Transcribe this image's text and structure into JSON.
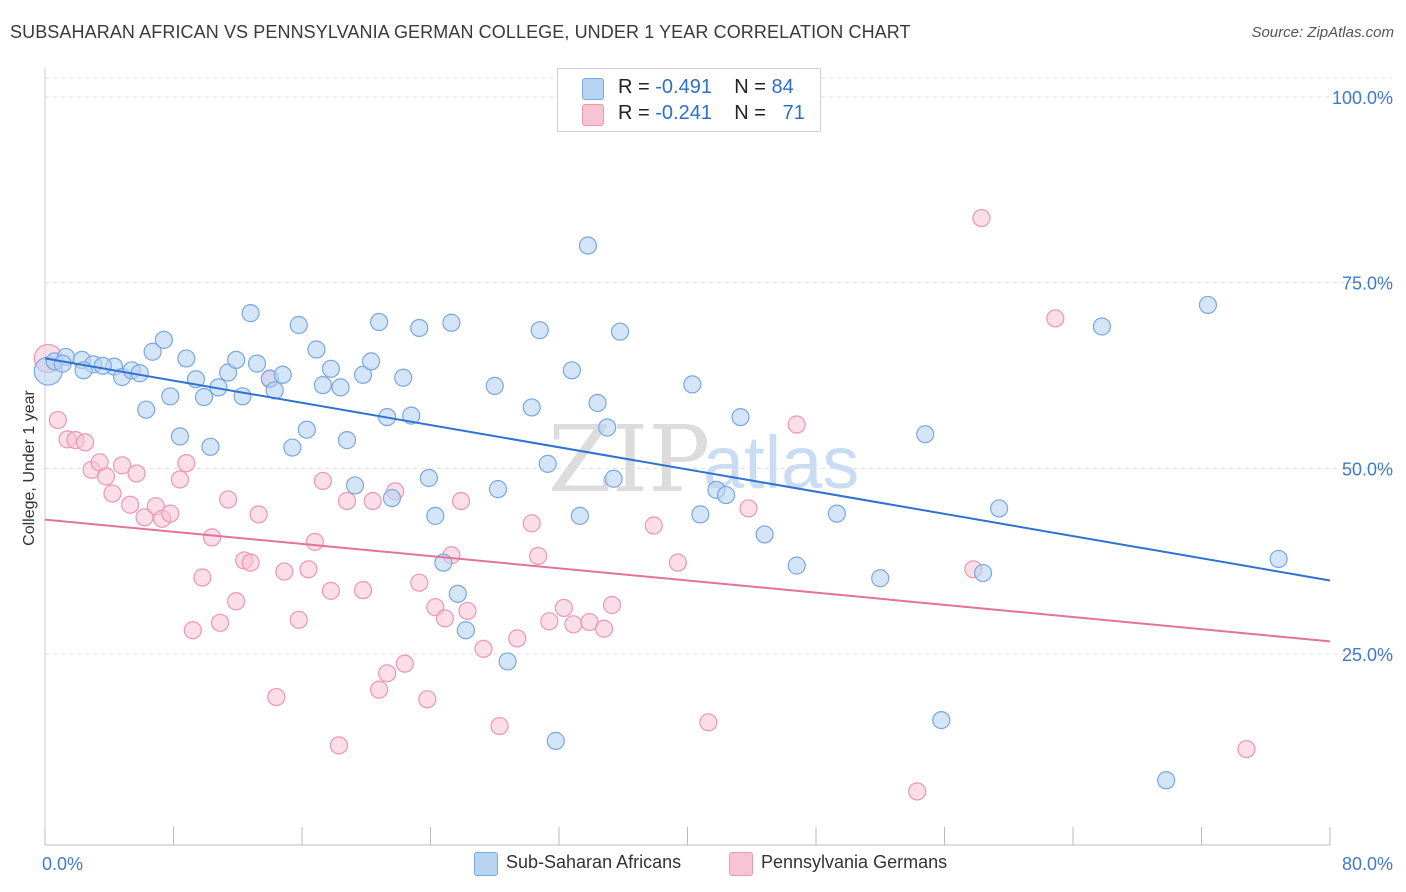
{
  "header": {
    "title": "SUBSAHARAN AFRICAN VS PENNSYLVANIA GERMAN COLLEGE, UNDER 1 YEAR CORRELATION CHART",
    "source": "Source: ZipAtlas.com"
  },
  "legend": {
    "row1": {
      "r_label": "R = ",
      "r_value": "-0.491",
      "n_label": "N = ",
      "n_value": "84"
    },
    "row2": {
      "r_label": "R = ",
      "r_value": "-0.241",
      "n_label": "N = ",
      "n_value": "71"
    }
  },
  "bottom_legend": {
    "series1": "Sub-Saharan Africans",
    "series2": "Pennsylvania Germans"
  },
  "watermark": {
    "zip": "ZIP",
    "atlas": "atlas"
  },
  "colors": {
    "blue_fill": "#b9d3f3",
    "blue_stroke": "#7aa7df",
    "blue_line": "#2f72d0",
    "pink_fill": "#f8c3d3",
    "pink_stroke": "#ee96b2",
    "pink_line": "#e4729a",
    "axis_text": "#3f7acb",
    "grid": "#dddddd"
  },
  "chart_data": {
    "type": "scatter",
    "title": "SUBSAHARAN AFRICAN VS PENNSYLVANIA GERMAN COLLEGE, UNDER 1 YEAR CORRELATION CHART",
    "xlabel": "",
    "ylabel": "College, Under 1 year",
    "xlim": [
      0,
      80
    ],
    "ylim": [
      0,
      105
    ],
    "x_tick_labels": [
      "0.0%",
      "80.0%"
    ],
    "y_ticks": [
      25,
      50,
      75,
      100
    ],
    "y_tick_labels": [
      "25.0%",
      "50.0%",
      "75.0%",
      "100.0%"
    ],
    "grid": true,
    "legend_position": "top-center",
    "series": [
      {
        "name": "Sub-Saharan Africans",
        "color": "#b9d3f3",
        "trend": {
          "x": [
            0,
            80
          ],
          "y": [
            64.8,
            34.9
          ]
        },
        "points": [
          [
            0.2,
            63.1
          ],
          [
            0.6,
            64.4
          ],
          [
            1.3,
            65.0
          ],
          [
            2.3,
            64.6
          ],
          [
            3.0,
            64.0
          ],
          [
            2.4,
            63.2
          ],
          [
            4.3,
            63.7
          ],
          [
            4.8,
            62.3
          ],
          [
            5.4,
            63.2
          ],
          [
            5.9,
            62.8
          ],
          [
            6.3,
            57.9
          ],
          [
            6.7,
            65.7
          ],
          [
            7.4,
            67.3
          ],
          [
            7.8,
            59.7
          ],
          [
            8.4,
            54.3
          ],
          [
            8.8,
            64.8
          ],
          [
            9.4,
            62.0
          ],
          [
            9.9,
            59.6
          ],
          [
            10.3,
            52.9
          ],
          [
            10.8,
            60.9
          ],
          [
            11.4,
            62.9
          ],
          [
            11.9,
            64.6
          ],
          [
            12.3,
            59.7
          ],
          [
            12.8,
            70.9
          ],
          [
            13.2,
            64.1
          ],
          [
            14.0,
            62.1
          ],
          [
            14.3,
            60.5
          ],
          [
            14.8,
            62.6
          ],
          [
            15.4,
            52.8
          ],
          [
            15.8,
            69.3
          ],
          [
            16.3,
            55.2
          ],
          [
            16.9,
            66.0
          ],
          [
            17.3,
            61.2
          ],
          [
            17.8,
            63.4
          ],
          [
            18.4,
            60.9
          ],
          [
            18.8,
            53.8
          ],
          [
            19.3,
            47.7
          ],
          [
            19.8,
            62.6
          ],
          [
            20.3,
            64.4
          ],
          [
            20.8,
            69.7
          ],
          [
            21.3,
            56.9
          ],
          [
            21.6,
            46.0
          ],
          [
            22.3,
            62.2
          ],
          [
            22.8,
            57.1
          ],
          [
            23.3,
            68.9
          ],
          [
            23.9,
            48.7
          ],
          [
            24.3,
            43.6
          ],
          [
            24.8,
            37.3
          ],
          [
            25.3,
            69.6
          ],
          [
            25.7,
            33.1
          ],
          [
            26.2,
            28.2
          ],
          [
            28.0,
            61.1
          ],
          [
            28.2,
            47.2
          ],
          [
            28.8,
            24.0
          ],
          [
            30.3,
            58.2
          ],
          [
            30.8,
            68.6
          ],
          [
            31.3,
            50.6
          ],
          [
            31.8,
            13.3
          ],
          [
            32.8,
            63.2
          ],
          [
            33.3,
            43.6
          ],
          [
            33.8,
            80.0
          ],
          [
            34.4,
            58.8
          ],
          [
            35.0,
            55.5
          ],
          [
            35.4,
            48.6
          ],
          [
            35.8,
            68.4
          ],
          [
            40.3,
            61.3
          ],
          [
            40.8,
            43.8
          ],
          [
            41.8,
            47.1
          ],
          [
            42.4,
            46.4
          ],
          [
            43.3,
            56.9
          ],
          [
            44.8,
            41.1
          ],
          [
            46.8,
            36.9
          ],
          [
            49.3,
            43.9
          ],
          [
            52.0,
            35.2
          ],
          [
            54.8,
            54.6
          ],
          [
            55.8,
            16.1
          ],
          [
            58.4,
            35.9
          ],
          [
            59.4,
            44.6
          ],
          [
            65.8,
            69.1
          ],
          [
            72.4,
            72.0
          ],
          [
            69.8,
            8.0
          ],
          [
            76.8,
            37.8
          ],
          [
            1.1,
            64.1
          ],
          [
            3.6,
            63.8
          ]
        ]
      },
      {
        "name": "Pennsylvania Germans",
        "color": "#f8c3d3",
        "trend": {
          "x": [
            0,
            80
          ],
          "y": [
            43.1,
            26.7
          ]
        },
        "points": [
          [
            0.2,
            64.8
          ],
          [
            0.8,
            56.5
          ],
          [
            1.4,
            53.9
          ],
          [
            1.9,
            53.8
          ],
          [
            2.5,
            53.5
          ],
          [
            2.9,
            49.8
          ],
          [
            3.4,
            50.8
          ],
          [
            3.8,
            48.9
          ],
          [
            4.2,
            46.6
          ],
          [
            4.8,
            50.4
          ],
          [
            5.3,
            45.1
          ],
          [
            5.7,
            49.3
          ],
          [
            6.2,
            43.4
          ],
          [
            6.9,
            44.9
          ],
          [
            7.3,
            43.2
          ],
          [
            7.8,
            43.9
          ],
          [
            8.4,
            48.5
          ],
          [
            8.8,
            50.7
          ],
          [
            9.2,
            28.2
          ],
          [
            9.8,
            35.3
          ],
          [
            10.4,
            40.7
          ],
          [
            10.9,
            29.2
          ],
          [
            11.4,
            45.8
          ],
          [
            11.9,
            32.1
          ],
          [
            12.4,
            37.6
          ],
          [
            12.8,
            37.3
          ],
          [
            13.3,
            43.8
          ],
          [
            14.0,
            62.0
          ],
          [
            14.4,
            19.2
          ],
          [
            14.9,
            36.1
          ],
          [
            15.8,
            29.6
          ],
          [
            16.4,
            36.4
          ],
          [
            16.8,
            40.1
          ],
          [
            17.3,
            48.3
          ],
          [
            17.8,
            33.5
          ],
          [
            18.3,
            12.7
          ],
          [
            18.8,
            45.6
          ],
          [
            19.8,
            33.6
          ],
          [
            20.4,
            45.6
          ],
          [
            20.8,
            20.2
          ],
          [
            21.3,
            22.4
          ],
          [
            21.8,
            46.9
          ],
          [
            22.4,
            23.7
          ],
          [
            23.3,
            34.6
          ],
          [
            23.8,
            18.9
          ],
          [
            24.3,
            31.3
          ],
          [
            24.9,
            29.8
          ],
          [
            25.3,
            38.3
          ],
          [
            25.9,
            45.6
          ],
          [
            26.3,
            30.8
          ],
          [
            27.3,
            25.7
          ],
          [
            28.3,
            15.3
          ],
          [
            29.4,
            27.1
          ],
          [
            30.3,
            42.6
          ],
          [
            30.7,
            38.2
          ],
          [
            31.4,
            29.4
          ],
          [
            32.3,
            31.2
          ],
          [
            32.9,
            29.0
          ],
          [
            33.9,
            29.3
          ],
          [
            34.8,
            28.4
          ],
          [
            35.3,
            31.6
          ],
          [
            37.9,
            42.3
          ],
          [
            39.4,
            37.3
          ],
          [
            41.3,
            15.8
          ],
          [
            43.8,
            44.6
          ],
          [
            46.8,
            55.9
          ],
          [
            54.3,
            6.5
          ],
          [
            58.3,
            83.7
          ],
          [
            62.9,
            70.2
          ],
          [
            57.8,
            36.4
          ],
          [
            74.8,
            12.2
          ]
        ]
      }
    ]
  }
}
